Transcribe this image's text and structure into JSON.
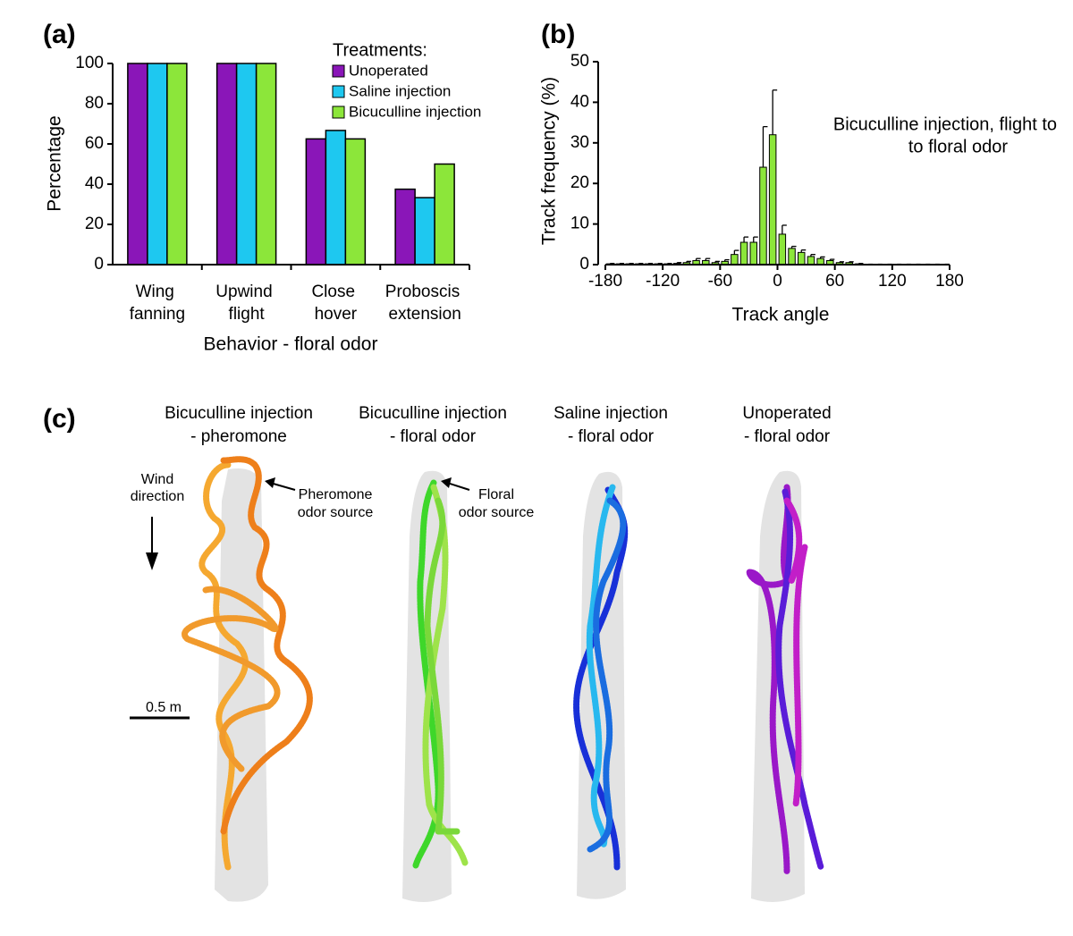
{
  "chart_data": [
    {
      "type": "bar",
      "label": "(a)",
      "xlabel": "Behavior - floral odor",
      "ylabel": "Percentage",
      "categories": [
        "Wing fanning",
        "Upwind flight",
        "Close hover",
        "Proboscis extension"
      ],
      "legend_title": "Treatments:",
      "series": [
        {
          "name": "Unoperated",
          "color": "#8a16b8",
          "values": [
            100,
            100,
            62.5,
            37.5
          ]
        },
        {
          "name": "Saline injection",
          "color": "#1ec8f0",
          "values": [
            100,
            100,
            66.7,
            33.3
          ]
        },
        {
          "name": "Bicuculline injection",
          "color": "#8ce63a",
          "values": [
            100,
            100,
            62.5,
            50
          ]
        }
      ],
      "ylim": [
        0,
        100
      ],
      "yticks": [
        0,
        20,
        40,
        60,
        80,
        100
      ]
    },
    {
      "type": "histogram",
      "label": "(b)",
      "xlabel": "Track angle",
      "ylabel": "Track frequency (%)",
      "annotation": [
        "Bicuculline injection, flight to",
        "to floral odor"
      ],
      "color": "#8ce63a",
      "bins": [
        -180,
        -170,
        -160,
        -150,
        -140,
        -130,
        -120,
        -110,
        -100,
        -90,
        -80,
        -70,
        -60,
        -50,
        -40,
        -30,
        -20,
        -10,
        0,
        10,
        20,
        30,
        40,
        50,
        60,
        70,
        80,
        90,
        100,
        110,
        120,
        130,
        140,
        150,
        160,
        170,
        180
      ],
      "values": [
        0.2,
        0.2,
        0.2,
        0.2,
        0.2,
        0.2,
        0.2,
        0.3,
        0.5,
        1,
        1,
        0.5,
        0.8,
        2.5,
        5.5,
        5.5,
        24,
        32,
        7.5,
        4,
        3,
        2,
        1.5,
        1,
        0.5,
        0.5,
        0.2,
        0.1,
        0.1,
        0.1,
        0.1,
        0.1,
        0.1,
        0.1,
        0.1,
        0.1
      ],
      "errors": [
        0.1,
        0.1,
        0.1,
        0.1,
        0.1,
        0.1,
        0.1,
        0.2,
        0.3,
        0.5,
        0.5,
        0.3,
        0.4,
        1,
        1.3,
        1.3,
        10,
        11,
        2.2,
        0.5,
        0.6,
        0.5,
        0.4,
        0.3,
        0.2,
        0.2,
        0.1,
        0,
        0,
        0,
        0,
        0,
        0,
        0,
        0,
        0
      ],
      "xlim": [
        -180,
        180
      ],
      "xticks": [
        -180,
        -120,
        -60,
        0,
        60,
        120,
        180
      ],
      "ylim": [
        0,
        50
      ],
      "yticks": [
        0,
        10,
        20,
        30,
        40,
        50
      ]
    }
  ],
  "panel_c": {
    "label": "(c)",
    "titles": [
      [
        "Bicuculline injection",
        "- pheromone"
      ],
      [
        "Bicuculline injection",
        "- floral odor"
      ],
      [
        "Saline injection",
        "- floral odor"
      ],
      [
        "Unoperated",
        "- floral odor"
      ]
    ],
    "wind": [
      "Wind",
      "direction"
    ],
    "pheromone_source": [
      "Pheromone",
      "odor source"
    ],
    "floral_source": [
      "Floral",
      "odor source"
    ],
    "scale_bar": "0.5 m"
  }
}
